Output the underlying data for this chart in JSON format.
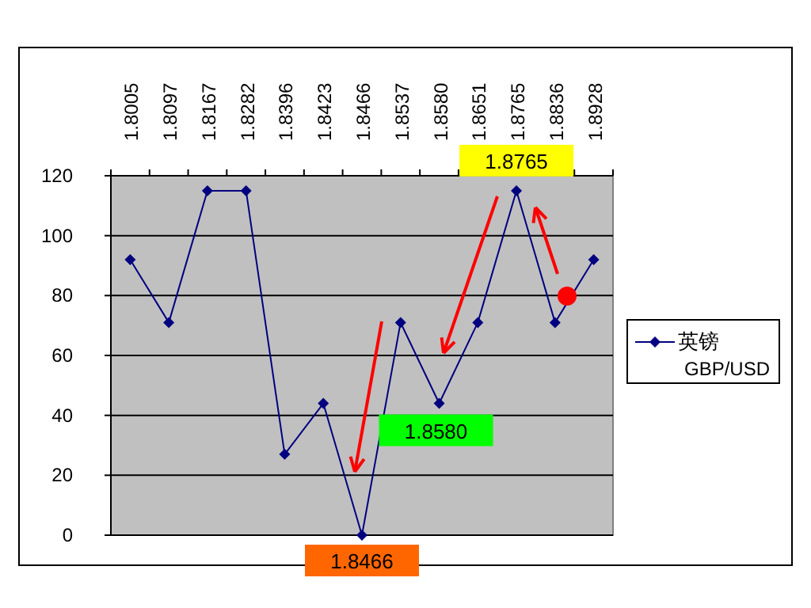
{
  "chart_data": {
    "type": "line",
    "categories": [
      "1.8005",
      "1.8097",
      "1.8167",
      "1.8282",
      "1.8396",
      "1.8423",
      "1.8466",
      "1.8537",
      "1.8580",
      "1.8651",
      "1.8765",
      "1.8836",
      "1.8928"
    ],
    "series": [
      {
        "name": "英镑 GBP/USD",
        "color": "#000080",
        "values": [
          92,
          71,
          115,
          115,
          27,
          44,
          0,
          71,
          44,
          71,
          115,
          71,
          92
        ]
      }
    ],
    "ylim": [
      0,
      120
    ],
    "yticks": [
      0,
      20,
      40,
      60,
      80,
      100,
      120
    ],
    "grid": "y",
    "legend": "right",
    "marker": "diamond",
    "annotations": [
      {
        "text": "1.8765",
        "x": "1.8765",
        "y": 115
      },
      {
        "text": "1.8580",
        "x": "1.8580",
        "y": 44
      },
      {
        "text": "1.8466",
        "x": "1.8466",
        "y": 0
      }
    ]
  }
}
